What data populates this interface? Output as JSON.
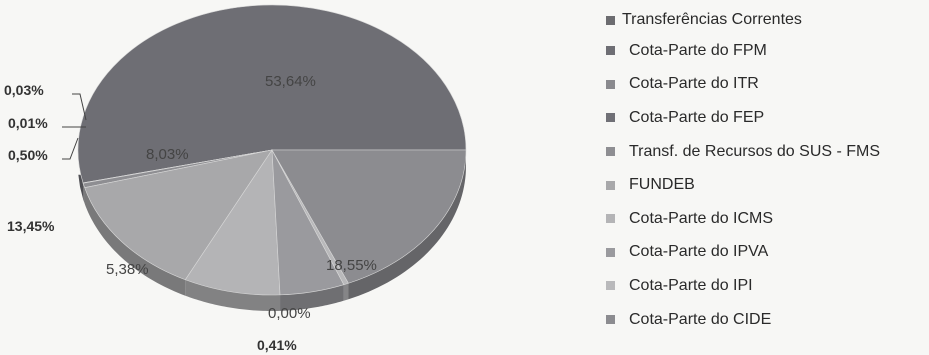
{
  "chart_data": {
    "type": "pie",
    "categories": [
      "Cota-Parte do FPM",
      "Cota-Parte do ITR",
      "Cota-Parte do FEP",
      "Transf. de Recursos do SUS - FMS",
      "FUNDEB",
      "Cota-Parte do ICMS",
      "Cota-Parte do IPVA",
      "Cota-Parte do IPI",
      "Cota-Parte do CIDE"
    ],
    "values": [
      53.64,
      0.03,
      0.01,
      0.5,
      13.45,
      8.03,
      5.38,
      0.41,
      18.55
    ],
    "labels": [
      "53,64%",
      "0,03%",
      "0,01%",
      "0,50%",
      "13,45%",
      "8,03%",
      "5,38%",
      "0,41%",
      "18,55%"
    ],
    "extra_label": "0,00%",
    "legend_title": "Transferências Correntes",
    "legend_position": "right",
    "colors": [
      "#6e6e74",
      "#8a8a8e",
      "#707076",
      "#8e8e92",
      "#a8a8aa",
      "#b4b4b6",
      "#9a9a9e",
      "#b9b9bb",
      "#8c8c90"
    ]
  }
}
